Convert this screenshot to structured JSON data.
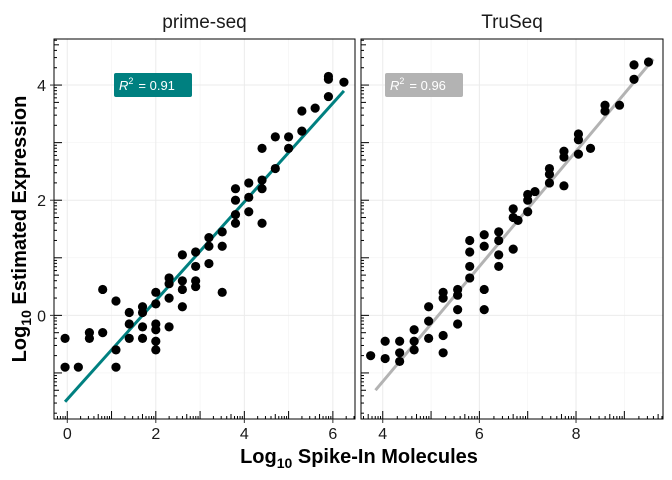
{
  "chart_data": {
    "type": "scatter",
    "xlabel": {
      "base": "Log",
      "sub": "10",
      "rest": " Spike-In Molecules"
    },
    "ylabel": {
      "base": "Log",
      "sub": "10",
      "rest": " Estimated Expression"
    },
    "ylim": [
      -1.8,
      4.8
    ],
    "grid": true,
    "legend": "none",
    "panels": [
      {
        "name": "prime-seq",
        "xlim": [
          -0.3,
          6.5
        ],
        "x_ticks": [
          0,
          2,
          4,
          6
        ],
        "y_ticks": [
          0,
          2,
          4
        ],
        "fit_color": "#008080",
        "r2_color": "#008080",
        "r2_label": "R",
        "r2_sup": "2",
        "r2_value": "=  0.91",
        "fit": {
          "x0": -0.05,
          "y0": -1.5,
          "x1": 6.25,
          "y1": 3.9
        },
        "x": [
          -0.05,
          -0.05,
          0.25,
          0.5,
          0.5,
          0.8,
          0.8,
          1.1,
          1.1,
          1.1,
          1.4,
          1.4,
          1.4,
          1.7,
          1.7,
          1.7,
          1.7,
          2.0,
          2.0,
          2.0,
          2.0,
          2.0,
          2.0,
          2.3,
          2.3,
          2.3,
          2.3,
          2.6,
          2.6,
          2.6,
          2.6,
          2.9,
          2.9,
          2.9,
          2.9,
          3.2,
          3.2,
          3.2,
          3.5,
          3.5,
          3.5,
          3.8,
          3.8,
          3.8,
          3.8,
          4.1,
          4.1,
          4.1,
          4.4,
          4.4,
          4.4,
          4.4,
          4.7,
          4.7,
          5.0,
          5.0,
          5.3,
          5.3,
          5.6,
          5.9,
          5.9,
          5.9,
          6.25
        ],
        "y": [
          -0.4,
          -0.9,
          -0.9,
          -0.3,
          -0.4,
          -0.3,
          0.45,
          -0.6,
          -0.9,
          0.25,
          -0.4,
          0.05,
          -0.15,
          -0.2,
          0.05,
          -0.4,
          0.15,
          -0.15,
          -0.25,
          -0.45,
          -0.6,
          0.4,
          0.2,
          -0.2,
          0.3,
          0.65,
          0.55,
          0.15,
          0.45,
          0.6,
          1.05,
          0.5,
          0.6,
          0.85,
          1.1,
          0.9,
          1.2,
          1.35,
          0.4,
          1.2,
          1.45,
          1.6,
          1.75,
          2.0,
          2.2,
          1.8,
          2.05,
          2.3,
          1.6,
          2.2,
          2.35,
          2.9,
          2.55,
          3.1,
          2.9,
          3.1,
          3.2,
          3.55,
          3.6,
          3.8,
          4.1,
          4.15,
          4.05
        ]
      },
      {
        "name": "TruSeq",
        "xlim": [
          3.55,
          9.8
        ],
        "x_ticks": [
          4,
          6,
          8
        ],
        "y_ticks": [
          0,
          2,
          4
        ],
        "fit_color": "#b3b3b3",
        "r2_color": "#b3b3b3",
        "r2_label": "R",
        "r2_sup": "2",
        "r2_value": "=  0.96",
        "fit": {
          "x0": 3.85,
          "y0": -1.3,
          "x1": 9.6,
          "y1": 4.45
        },
        "x": [
          3.75,
          4.05,
          4.05,
          4.35,
          4.35,
          4.35,
          4.65,
          4.65,
          4.65,
          4.95,
          4.95,
          4.95,
          5.25,
          5.25,
          5.25,
          5.25,
          5.55,
          5.55,
          5.55,
          5.55,
          5.8,
          5.8,
          5.8,
          5.8,
          6.1,
          6.1,
          6.1,
          6.1,
          6.4,
          6.4,
          6.4,
          6.4,
          6.7,
          6.7,
          6.7,
          6.8,
          7.0,
          7.0,
          7.0,
          7.15,
          7.45,
          7.45,
          7.45,
          7.75,
          7.75,
          7.75,
          8.05,
          8.05,
          8.05,
          8.3,
          8.6,
          8.6,
          8.9,
          9.2,
          9.2,
          9.5
        ],
        "y": [
          -0.7,
          -0.45,
          -0.75,
          -0.45,
          -0.65,
          -0.8,
          -0.45,
          -0.25,
          -0.6,
          -0.4,
          -0.1,
          0.15,
          -0.65,
          -0.35,
          0.3,
          0.4,
          -0.15,
          0.1,
          0.35,
          0.45,
          0.65,
          0.85,
          1.1,
          1.3,
          0.1,
          0.45,
          1.2,
          1.4,
          0.85,
          1.05,
          1.3,
          1.45,
          1.15,
          1.7,
          1.85,
          1.65,
          1.8,
          2.0,
          2.1,
          2.15,
          2.3,
          2.45,
          2.55,
          2.25,
          2.75,
          2.85,
          2.8,
          3.05,
          3.15,
          2.9,
          3.55,
          3.65,
          3.65,
          4.1,
          4.35,
          4.4
        ]
      }
    ]
  }
}
